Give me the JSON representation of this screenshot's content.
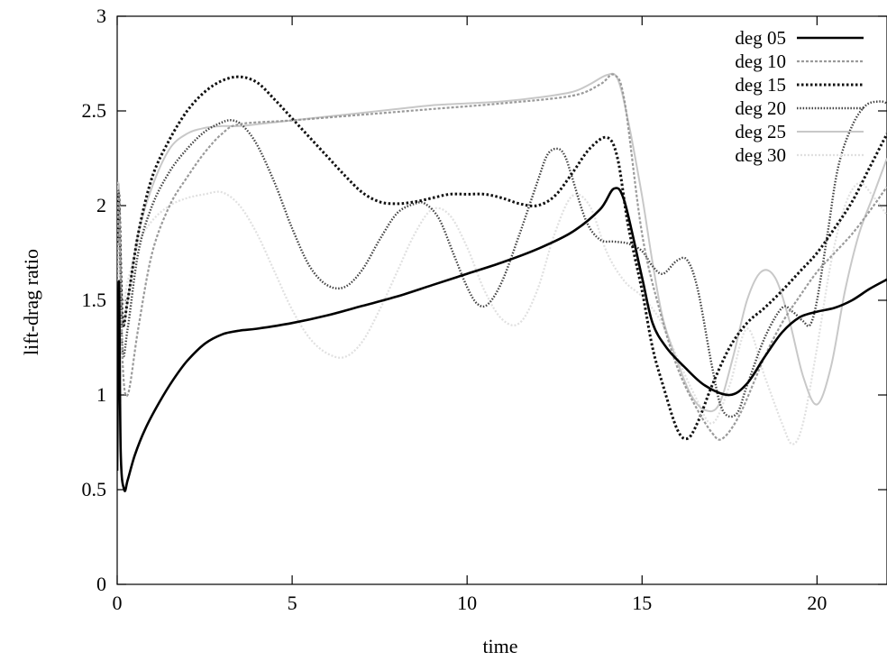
{
  "chart_data": {
    "type": "line",
    "title": "",
    "xlabel": "time",
    "ylabel": "lift-drag ratio",
    "xlim": [
      0,
      22
    ],
    "ylim": [
      0,
      3
    ],
    "xticks": [
      0,
      5,
      10,
      15,
      20
    ],
    "yticks": [
      0,
      0.5,
      1,
      1.5,
      2,
      2.5,
      3
    ],
    "grid": false,
    "legend_position": "top-right",
    "series": [
      {
        "name": "deg 05",
        "color": "#000000",
        "style": "solid",
        "x": [
          0,
          0.05,
          0.1,
          0.2,
          0.3,
          0.5,
          0.8,
          1.2,
          1.6,
          2.0,
          2.5,
          3.0,
          3.5,
          4.0,
          5.0,
          6.0,
          7.0,
          8.0,
          9.0,
          10.0,
          11.0,
          12.0,
          13.0,
          13.8,
          14.2,
          14.5,
          15.0,
          15.3,
          15.7,
          16.2,
          16.8,
          17.5,
          18.0,
          18.5,
          19.0,
          19.5,
          20.0,
          20.5,
          21.0,
          21.5,
          22.0
        ],
        "y": [
          0.6,
          1.6,
          0.7,
          0.5,
          0.55,
          0.68,
          0.82,
          0.96,
          1.08,
          1.18,
          1.27,
          1.32,
          1.34,
          1.35,
          1.38,
          1.42,
          1.47,
          1.52,
          1.58,
          1.64,
          1.7,
          1.77,
          1.86,
          1.98,
          2.09,
          2.02,
          1.62,
          1.38,
          1.25,
          1.15,
          1.05,
          1.0,
          1.06,
          1.2,
          1.33,
          1.41,
          1.44,
          1.46,
          1.5,
          1.56,
          1.61
        ]
      },
      {
        "name": "deg 10",
        "color": "#9a9a9a",
        "style": "dashed",
        "x": [
          0,
          0.05,
          0.15,
          0.3,
          0.6,
          1.0,
          1.5,
          2.0,
          2.5,
          3.0,
          3.5,
          5.0,
          7.0,
          9.0,
          11.0,
          13.0,
          13.8,
          14.2,
          14.5,
          15.0,
          15.5,
          16.0,
          16.5,
          17.0,
          17.3,
          17.8,
          18.5,
          19.0,
          19.5,
          20.0,
          20.5,
          21.0,
          21.5,
          22.0
        ],
        "y": [
          1.6,
          2.05,
          1.2,
          1.0,
          1.35,
          1.75,
          2.0,
          2.15,
          2.28,
          2.38,
          2.43,
          2.45,
          2.48,
          2.51,
          2.54,
          2.58,
          2.64,
          2.69,
          2.55,
          1.85,
          1.45,
          1.15,
          0.95,
          0.8,
          0.77,
          0.9,
          1.2,
          1.38,
          1.52,
          1.65,
          1.75,
          1.85,
          1.97,
          2.1
        ]
      },
      {
        "name": "deg 15",
        "color": "#111111",
        "style": "dotted",
        "x": [
          0,
          0.05,
          0.15,
          0.3,
          0.6,
          1.0,
          1.5,
          2.0,
          2.5,
          3.0,
          3.5,
          4.0,
          4.5,
          5.0,
          5.5,
          6.0,
          6.5,
          7.0,
          7.5,
          8.0,
          8.5,
          9.0,
          9.5,
          10.0,
          10.5,
          11.0,
          11.5,
          12.0,
          12.5,
          13.0,
          13.5,
          14.0,
          14.3,
          14.6,
          15.0,
          15.3,
          15.6,
          16.0,
          16.3,
          16.6,
          17.0,
          17.5,
          18.0,
          18.5,
          19.0,
          19.5,
          20.0,
          20.5,
          21.0,
          21.5,
          22.0
        ],
        "y": [
          1.8,
          2.05,
          1.4,
          1.5,
          1.85,
          2.15,
          2.35,
          2.5,
          2.6,
          2.66,
          2.68,
          2.65,
          2.56,
          2.46,
          2.36,
          2.26,
          2.16,
          2.07,
          2.02,
          2.01,
          2.02,
          2.04,
          2.06,
          2.06,
          2.06,
          2.04,
          2.01,
          2.0,
          2.05,
          2.17,
          2.3,
          2.36,
          2.25,
          1.9,
          1.55,
          1.25,
          1.05,
          0.82,
          0.77,
          0.86,
          1.05,
          1.25,
          1.38,
          1.46,
          1.55,
          1.65,
          1.75,
          1.88,
          2.02,
          2.2,
          2.38
        ]
      },
      {
        "name": "deg 20",
        "color": "#444444",
        "style": "fine-dotted",
        "x": [
          0,
          0.05,
          0.15,
          0.3,
          0.6,
          1.0,
          1.5,
          2.0,
          2.5,
          3.0,
          3.3,
          3.6,
          4.0,
          4.5,
          5.0,
          5.5,
          6.0,
          6.5,
          7.0,
          7.5,
          8.0,
          8.5,
          8.8,
          9.2,
          9.6,
          10.0,
          10.3,
          10.6,
          11.0,
          11.5,
          12.0,
          12.3,
          12.6,
          12.8,
          13.0,
          13.4,
          13.8,
          14.2,
          14.6,
          15.0,
          15.3,
          15.6,
          16.0,
          16.3,
          16.6,
          17.0,
          17.3,
          17.7,
          18.0,
          18.5,
          19.0,
          19.3,
          19.6,
          19.8,
          20.0,
          20.3,
          20.6,
          21.0,
          21.4,
          21.8,
          22.0
        ],
        "y": [
          1.9,
          2.05,
          1.25,
          1.35,
          1.75,
          2.0,
          2.18,
          2.3,
          2.39,
          2.44,
          2.45,
          2.42,
          2.32,
          2.12,
          1.88,
          1.68,
          1.58,
          1.57,
          1.66,
          1.82,
          1.96,
          2.01,
          2.01,
          1.93,
          1.75,
          1.57,
          1.48,
          1.48,
          1.6,
          1.85,
          2.12,
          2.27,
          2.3,
          2.26,
          2.15,
          1.92,
          1.82,
          1.81,
          1.8,
          1.76,
          1.68,
          1.64,
          1.71,
          1.71,
          1.55,
          1.15,
          0.92,
          0.9,
          1.05,
          1.3,
          1.46,
          1.44,
          1.39,
          1.37,
          1.5,
          1.85,
          2.2,
          2.42,
          2.53,
          2.55,
          2.54
        ]
      },
      {
        "name": "deg 25",
        "color": "#c8c8c8",
        "style": "solid-light",
        "x": [
          0,
          0.05,
          0.15,
          0.3,
          0.6,
          1.0,
          1.5,
          2.0,
          2.5,
          3.0,
          3.5,
          4.0,
          5.0,
          6.0,
          7.0,
          8.0,
          9.0,
          10.0,
          11.0,
          12.0,
          13.0,
          13.5,
          14.0,
          14.3,
          14.6,
          15.0,
          15.3,
          15.6,
          16.0,
          16.4,
          16.8,
          17.2,
          17.6,
          18.0,
          18.4,
          18.8,
          19.2,
          19.6,
          20.0,
          20.4,
          20.8,
          21.2,
          21.6,
          22.0
        ],
        "y": [
          1.9,
          2.1,
          1.4,
          1.5,
          1.85,
          2.1,
          2.3,
          2.38,
          2.41,
          2.42,
          2.42,
          2.43,
          2.45,
          2.47,
          2.49,
          2.51,
          2.53,
          2.54,
          2.55,
          2.57,
          2.6,
          2.64,
          2.69,
          2.67,
          2.45,
          2.05,
          1.7,
          1.4,
          1.18,
          1.0,
          0.92,
          0.95,
          1.2,
          1.5,
          1.65,
          1.62,
          1.4,
          1.1,
          0.95,
          1.15,
          1.55,
          1.85,
          2.05,
          2.25
        ]
      },
      {
        "name": "deg 30",
        "color": "#e0e0e0",
        "style": "faint-dotted",
        "x": [
          0,
          0.05,
          0.15,
          0.3,
          0.6,
          1.0,
          1.5,
          2.0,
          2.5,
          3.0,
          3.5,
          4.0,
          4.5,
          5.0,
          5.5,
          6.0,
          6.5,
          7.0,
          7.5,
          8.0,
          8.5,
          9.0,
          9.5,
          10.0,
          10.5,
          11.0,
          11.5,
          12.0,
          12.5,
          13.0,
          13.5,
          14.0,
          14.5,
          15.0,
          15.5,
          16.0,
          16.5,
          17.0,
          17.5,
          18.0,
          18.5,
          19.0,
          19.3,
          19.6,
          20.0,
          20.4,
          20.8,
          21.2,
          21.6,
          22.0
        ],
        "y": [
          2.0,
          2.1,
          1.5,
          1.6,
          1.8,
          1.92,
          2.0,
          2.04,
          2.06,
          2.07,
          2.0,
          1.85,
          1.65,
          1.45,
          1.3,
          1.22,
          1.2,
          1.28,
          1.45,
          1.65,
          1.85,
          1.98,
          1.95,
          1.78,
          1.55,
          1.4,
          1.38,
          1.55,
          1.85,
          2.05,
          2.0,
          1.75,
          1.6,
          1.52,
          1.4,
          1.2,
          1.0,
          0.85,
          1.05,
          1.35,
          1.1,
          0.85,
          0.74,
          0.85,
          1.25,
          1.7,
          2.0,
          2.12,
          2.05,
          1.95
        ]
      }
    ]
  }
}
